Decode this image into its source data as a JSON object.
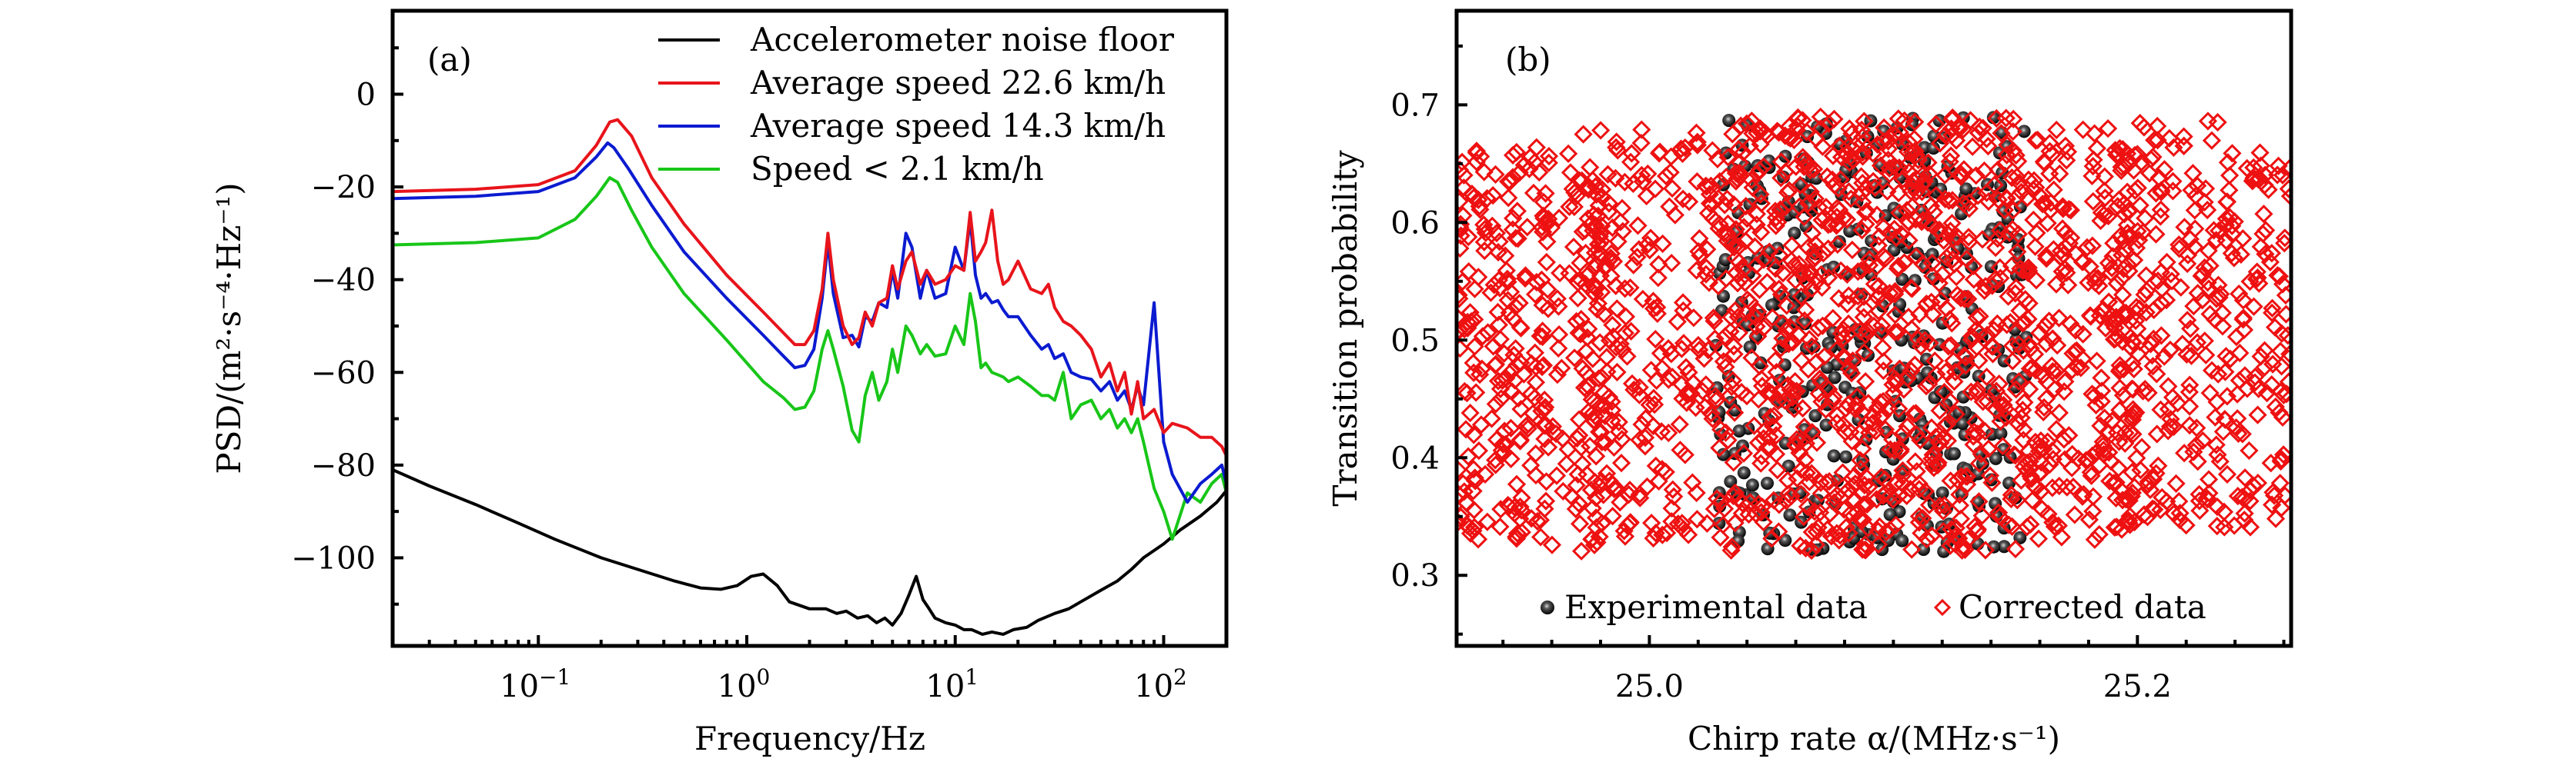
{
  "chart_data": [
    {
      "panel": "a",
      "type": "line",
      "panel_label": "(a)",
      "xlabel": "Frequency/Hz",
      "ylabel": "PSD/(m²·s⁻⁴·Hz⁻¹)",
      "xscale": "log",
      "xlim": [
        0.02,
        200
      ],
      "ylim": [
        -119,
        18
      ],
      "x_ticks": [
        {
          "value": 0.1,
          "base": "10",
          "exp": "−1"
        },
        {
          "value": 1,
          "base": "10",
          "exp": "0"
        },
        {
          "value": 10,
          "base": "10",
          "exp": "1"
        },
        {
          "value": 100,
          "base": "10",
          "exp": "2"
        }
      ],
      "y_ticks": [
        0,
        -20,
        -40,
        -60,
        -80,
        -100
      ],
      "y_tick_labels": [
        "0",
        "−20",
        "−40",
        "−60",
        "−80",
        "−100"
      ],
      "y_minor_ticks": [
        10,
        -10,
        -30,
        -50,
        -70,
        -90,
        -110
      ],
      "legend_position": "top-right",
      "series": [
        {
          "name": "Accelerometer noise floor",
          "color": "#000000",
          "x": [
            0.02,
            0.03,
            0.05,
            0.08,
            0.12,
            0.2,
            0.3,
            0.45,
            0.6,
            0.75,
            0.9,
            1.05,
            1.2,
            1.4,
            1.6,
            2.0,
            2.4,
            2.7,
            3.0,
            3.4,
            3.8,
            4.2,
            4.6,
            5.0,
            5.5,
            6.0,
            6.5,
            7.0,
            7.5,
            8.0,
            9.0,
            10,
            11,
            12,
            13.5,
            15,
            17,
            19,
            22,
            25,
            30,
            35,
            40,
            50,
            60,
            70,
            80,
            100,
            120,
            150,
            180,
            200
          ],
          "y": [
            -81,
            -84.5,
            -88.5,
            -92.5,
            -96,
            -100,
            -102.5,
            -105,
            -106.5,
            -106.8,
            -106,
            -104,
            -103.5,
            -106,
            -109.5,
            -111,
            -111,
            -112,
            -111.5,
            -113,
            -112.5,
            -114,
            -113,
            -114.5,
            -112,
            -108,
            -104,
            -109,
            -111,
            -113,
            -114,
            -114.5,
            -115.5,
            -115.5,
            -116.5,
            -116,
            -116.5,
            -115.5,
            -115,
            -113.5,
            -112,
            -111,
            -109.5,
            -107,
            -105,
            -102.5,
            -100,
            -97,
            -94,
            -91,
            -88,
            -85.5
          ]
        },
        {
          "name": "Average speed 22.6 km/h",
          "color": "#e8141b",
          "x": [
            0.02,
            0.05,
            0.1,
            0.15,
            0.19,
            0.22,
            0.24,
            0.28,
            0.35,
            0.5,
            0.8,
            1.2,
            1.5,
            1.7,
            1.9,
            2.1,
            2.3,
            2.45,
            2.6,
            2.9,
            3.2,
            3.45,
            3.7,
            4.0,
            4.3,
            4.7,
            5.0,
            5.3,
            5.8,
            6.2,
            6.8,
            7.3,
            8.0,
            9.0,
            10,
            11,
            11.8,
            12.5,
            13.3,
            14,
            15,
            16,
            17,
            18,
            20,
            23,
            26,
            28,
            30,
            33,
            36,
            40,
            45,
            50,
            55,
            60,
            65,
            70,
            75,
            80,
            90,
            100,
            110,
            130,
            150,
            170,
            190,
            200
          ],
          "y": [
            -21,
            -20.5,
            -19.5,
            -16.5,
            -11,
            -6,
            -5.5,
            -9,
            -18,
            -28,
            -39,
            -47,
            -51.5,
            -54,
            -54,
            -51,
            -42,
            -30,
            -40,
            -50,
            -54,
            -52.5,
            -47,
            -50,
            -45,
            -44,
            -37,
            -42,
            -36,
            -34,
            -41,
            -38,
            -41,
            -40,
            -37,
            -38,
            -25.5,
            -36,
            -34,
            -32,
            -25,
            -36,
            -41,
            -40,
            -36,
            -42,
            -43,
            -41,
            -46,
            -49,
            -50,
            -52,
            -55,
            -61,
            -58,
            -64,
            -60,
            -69,
            -62,
            -70,
            -68,
            -73,
            -71,
            -72,
            -74,
            -74,
            -76,
            -78
          ]
        },
        {
          "name": "Average speed 14.3 km/h",
          "color": "#0b1bd0",
          "x": [
            0.02,
            0.05,
            0.1,
            0.15,
            0.19,
            0.215,
            0.23,
            0.27,
            0.35,
            0.5,
            0.8,
            1.2,
            1.5,
            1.7,
            1.9,
            2.1,
            2.3,
            2.45,
            2.6,
            2.9,
            3.2,
            3.45,
            3.7,
            4.0,
            4.3,
            4.7,
            5.0,
            5.3,
            5.8,
            6.2,
            6.8,
            7.3,
            8.0,
            9.0,
            10,
            11,
            11.8,
            12.5,
            13.3,
            14,
            15,
            16,
            17,
            18,
            20,
            23,
            26,
            28,
            30,
            33,
            36,
            40,
            45,
            50,
            55,
            60,
            65,
            70,
            75,
            80,
            90,
            100,
            110,
            130,
            150,
            170,
            190,
            200
          ],
          "y": [
            -22.5,
            -22,
            -21,
            -18,
            -13.5,
            -10.5,
            -11.5,
            -16,
            -24,
            -34,
            -44,
            -52,
            -56.5,
            -59,
            -58.5,
            -55,
            -44,
            -32,
            -43,
            -52.5,
            -52,
            -54.5,
            -48,
            -49,
            -45,
            -46,
            -38,
            -44,
            -30,
            -33,
            -44,
            -38,
            -44,
            -43,
            -33,
            -38,
            -27,
            -39,
            -44,
            -43,
            -45,
            -44.5,
            -46.5,
            -48,
            -48,
            -52,
            -55,
            -54,
            -57,
            -56,
            -60,
            -61,
            -61.5,
            -64,
            -62,
            -66,
            -64,
            -68,
            -63,
            -67,
            -45,
            -75,
            -82,
            -88,
            -84,
            -82,
            -80,
            -84
          ]
        },
        {
          "name": "Speed < 2.1 km/h",
          "color": "#18c618",
          "x": [
            0.02,
            0.05,
            0.1,
            0.15,
            0.19,
            0.22,
            0.24,
            0.28,
            0.35,
            0.5,
            0.8,
            1.2,
            1.5,
            1.7,
            1.9,
            2.1,
            2.3,
            2.45,
            2.6,
            2.9,
            3.2,
            3.45,
            3.7,
            4.0,
            4.3,
            4.7,
            5.0,
            5.3,
            5.8,
            6.2,
            6.8,
            7.3,
            8.0,
            9.0,
            10,
            11,
            11.8,
            12.5,
            13.3,
            14,
            15,
            16,
            17,
            18,
            20,
            23,
            26,
            28,
            30,
            33,
            36,
            40,
            45,
            50,
            55,
            60,
            65,
            70,
            75,
            80,
            90,
            100,
            110,
            130,
            150,
            170,
            190,
            200
          ],
          "y": [
            -32.5,
            -32,
            -31,
            -27,
            -22,
            -18,
            -19,
            -25,
            -33,
            -43,
            -53,
            -62,
            -65.5,
            -68,
            -67.5,
            -64,
            -55,
            -51,
            -55,
            -63,
            -72.5,
            -75,
            -65,
            -60,
            -66,
            -62,
            -55,
            -60,
            -50,
            -52,
            -56,
            -54,
            -56.5,
            -56,
            -50,
            -54,
            -43,
            -49,
            -59,
            -58,
            -60,
            -60.5,
            -61,
            -62,
            -61,
            -63,
            -65,
            -65,
            -66,
            -60,
            -70,
            -67,
            -66,
            -70,
            -68,
            -72,
            -70,
            -73,
            -70,
            -75,
            -85,
            -90,
            -96,
            -86,
            -88,
            -84,
            -82,
            -86
          ]
        }
      ]
    },
    {
      "panel": "b",
      "type": "scatter",
      "panel_label": "(b)",
      "xlabel": "Chirp rate α/(MHz·s⁻¹)",
      "ylabel": "Transition probability",
      "xlim": [
        24.921,
        25.263
      ],
      "ylim": [
        0.24,
        0.78
      ],
      "x_ticks": [
        25.0,
        25.2
      ],
      "x_tick_labels": [
        "25.0",
        "25.2"
      ],
      "x_minor_step": 0.02,
      "y_ticks": [
        0.3,
        0.4,
        0.5,
        0.6,
        0.7
      ],
      "y_tick_labels": [
        "0.3",
        "0.4",
        "0.5",
        "0.6",
        "0.7"
      ],
      "y_minor_ticks": [
        0.25,
        0.35,
        0.45,
        0.55,
        0.65,
        0.75
      ],
      "legend_position": "bottom-center",
      "series": [
        {
          "name": "Experimental data",
          "marker": "filled-sphere",
          "color": "#000000",
          "x_range": [
            25.027,
            25.155
          ],
          "y_range": [
            0.31,
            0.69
          ],
          "clusters": [
            {
              "x": [
                25.027,
                25.155
              ],
              "y": [
                0.32,
                0.69
              ],
              "count": 420
            }
          ]
        },
        {
          "name": "Corrected data",
          "marker": "open-diamond",
          "color": "#ee1111",
          "x_range": [
            24.921,
            25.263
          ],
          "y_range": [
            0.31,
            0.69
          ],
          "clusters": [
            {
              "x": [
                24.921,
                24.96
              ],
              "y": [
                0.33,
                0.67
              ],
              "count": 230
            },
            {
              "x": [
                24.96,
                24.985
              ],
              "y": [
                0.32,
                0.66
              ],
              "count": 90
            },
            {
              "x": [
                24.97,
                25.03
              ],
              "y": [
                0.33,
                0.68
              ],
              "count": 260
            },
            {
              "x": [
                25.03,
                25.09
              ],
              "y": [
                0.32,
                0.69
              ],
              "count": 420
            },
            {
              "x": [
                25.09,
                25.155
              ],
              "y": [
                0.32,
                0.69
              ],
              "count": 420
            },
            {
              "x": [
                25.155,
                25.2
              ],
              "y": [
                0.33,
                0.68
              ],
              "count": 260
            },
            {
              "x": [
                25.19,
                25.235
              ],
              "y": [
                0.34,
                0.69
              ],
              "count": 210
            },
            {
              "x": [
                25.235,
                25.263
              ],
              "y": [
                0.34,
                0.66
              ],
              "count": 130
            }
          ]
        }
      ]
    }
  ]
}
